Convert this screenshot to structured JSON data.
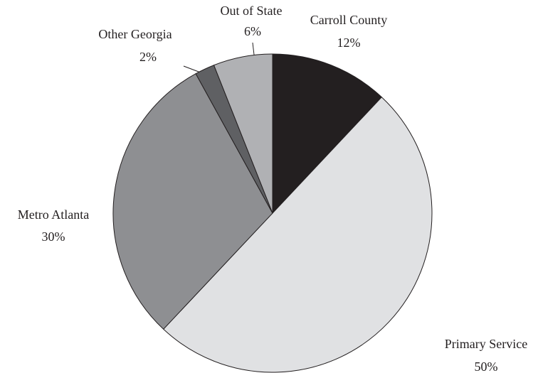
{
  "chart_data": {
    "type": "pie",
    "categories": [
      "Carroll County",
      "Primary Service",
      "Metro Atlanta",
      "Other Georgia",
      "Out of State"
    ],
    "values": [
      12,
      50,
      30,
      2,
      6
    ],
    "value_labels": [
      "12%",
      "50%",
      "30%",
      "2%",
      "6%"
    ],
    "colors": [
      "#231f20",
      "#e0e1e3",
      "#8e8f92",
      "#5f6063",
      "#b0b1b4"
    ]
  }
}
